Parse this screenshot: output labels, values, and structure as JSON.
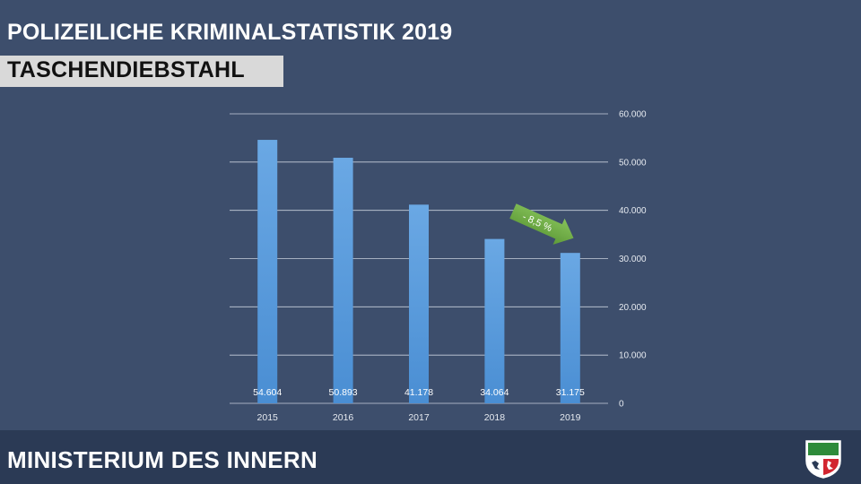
{
  "header": {
    "title": "POLIZEILICHE KRIMINALSTATISTIK 2019",
    "subtitle": "TASCHENDIEBSTAHL"
  },
  "footer": {
    "ministry": "MINISTERIUM DES INNERN"
  },
  "colors": {
    "background": "#3d4e6c",
    "footer": "#2b3a55",
    "bar": "#5b9bd5",
    "arrow": "#70ad47"
  },
  "logo": {
    "icon": "nrw-coat-of-arms-icon"
  },
  "chart_data": {
    "type": "bar",
    "categories": [
      "2015",
      "2016",
      "2017",
      "2018",
      "2019"
    ],
    "values": [
      54604,
      50893,
      41178,
      34064,
      31175
    ],
    "value_labels": [
      "54.604",
      "50.893",
      "41.178",
      "34.064",
      "31.175"
    ],
    "ylim": [
      0,
      60000
    ],
    "yticks": [
      0,
      10000,
      20000,
      30000,
      40000,
      50000,
      60000
    ],
    "ytick_labels": [
      "0",
      "10.000",
      "20.000",
      "30.000",
      "40.000",
      "50.000",
      "60.000"
    ],
    "y_axis_side": "right",
    "grid": true,
    "annotation": {
      "text": "- 8,5 %",
      "target": "2019"
    }
  }
}
